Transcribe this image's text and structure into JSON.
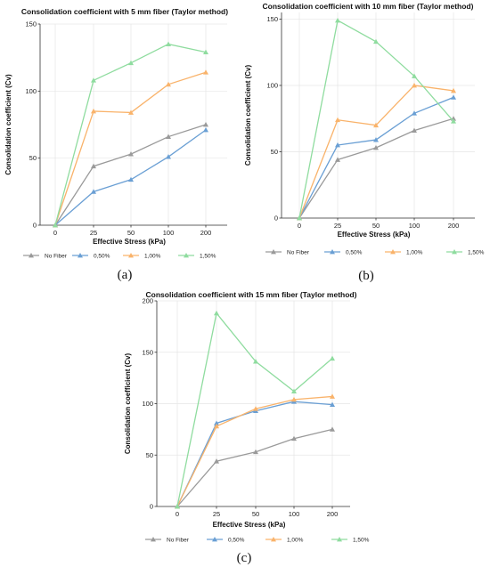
{
  "chart_data": [
    {
      "type": "line",
      "title": "Consolidation coefficient with 5 mm fiber (Taylor method)",
      "xlabel": "Effective Stress (kPa)",
      "ylabel": "Consolidation coefficient (Cv)",
      "categories": [
        "0",
        "25",
        "50",
        "100",
        "200"
      ],
      "ylim": [
        0,
        150
      ],
      "yticks": [
        0,
        50,
        100,
        150
      ],
      "grid": true,
      "legend_position": "bottom",
      "caption": "(a)",
      "series": [
        {
          "name": "No Fiber",
          "color": "#9a9a9a",
          "values": [
            0,
            44,
            53,
            66,
            75
          ]
        },
        {
          "name": "0,50%",
          "color": "#6a9fd4",
          "values": [
            0,
            25,
            34,
            51,
            71
          ]
        },
        {
          "name": "1,00%",
          "color": "#f9b36b",
          "values": [
            0,
            85,
            84,
            105,
            114
          ]
        },
        {
          "name": "1,50%",
          "color": "#8fdc9f",
          "values": [
            0,
            108,
            121,
            135,
            129
          ]
        }
      ]
    },
    {
      "type": "line",
      "title": "Consolidation coefficient with 10 mm fiber (Taylor method)",
      "xlabel": "Effective Stress (kPa)",
      "ylabel": "Consolidation coefficient (Cv)",
      "categories": [
        "0",
        "25",
        "50",
        "100",
        "200"
      ],
      "ylim": [
        0,
        155
      ],
      "yticks": [
        0,
        50,
        100,
        150
      ],
      "grid": true,
      "legend_position": "bottom",
      "caption": "(b)",
      "series": [
        {
          "name": "No Fiber",
          "color": "#9a9a9a",
          "values": [
            0,
            44,
            53,
            66,
            75
          ]
        },
        {
          "name": "0,50%",
          "color": "#6a9fd4",
          "values": [
            0,
            55,
            59,
            79,
            91
          ]
        },
        {
          "name": "1,00%",
          "color": "#f9b36b",
          "values": [
            0,
            74,
            70,
            100,
            96
          ]
        },
        {
          "name": "1,50%",
          "color": "#8fdc9f",
          "values": [
            0,
            149,
            133,
            107,
            73
          ]
        }
      ]
    },
    {
      "type": "line",
      "title": "Consolidation coefficient with 15 mm fiber (Taylor method)",
      "xlabel": "Effective Stress (kPa)",
      "ylabel": "Consolidation coefficient (Cv)",
      "categories": [
        "0",
        "25",
        "50",
        "100",
        "200"
      ],
      "ylim": [
        0,
        200
      ],
      "yticks": [
        0,
        50,
        100,
        150,
        200
      ],
      "grid": true,
      "legend_position": "bottom",
      "caption": "(c)",
      "series": [
        {
          "name": "No Fiber",
          "color": "#9a9a9a",
          "values": [
            0,
            44,
            53,
            66,
            75
          ]
        },
        {
          "name": "0,50%",
          "color": "#6a9fd4",
          "values": [
            0,
            81,
            93,
            102,
            99
          ]
        },
        {
          "name": "1,00%",
          "color": "#f9b36b",
          "values": [
            0,
            78,
            95,
            104,
            107
          ]
        },
        {
          "name": "1,50%",
          "color": "#8fdc9f",
          "values": [
            0,
            188,
            141,
            112,
            144
          ]
        }
      ]
    }
  ]
}
